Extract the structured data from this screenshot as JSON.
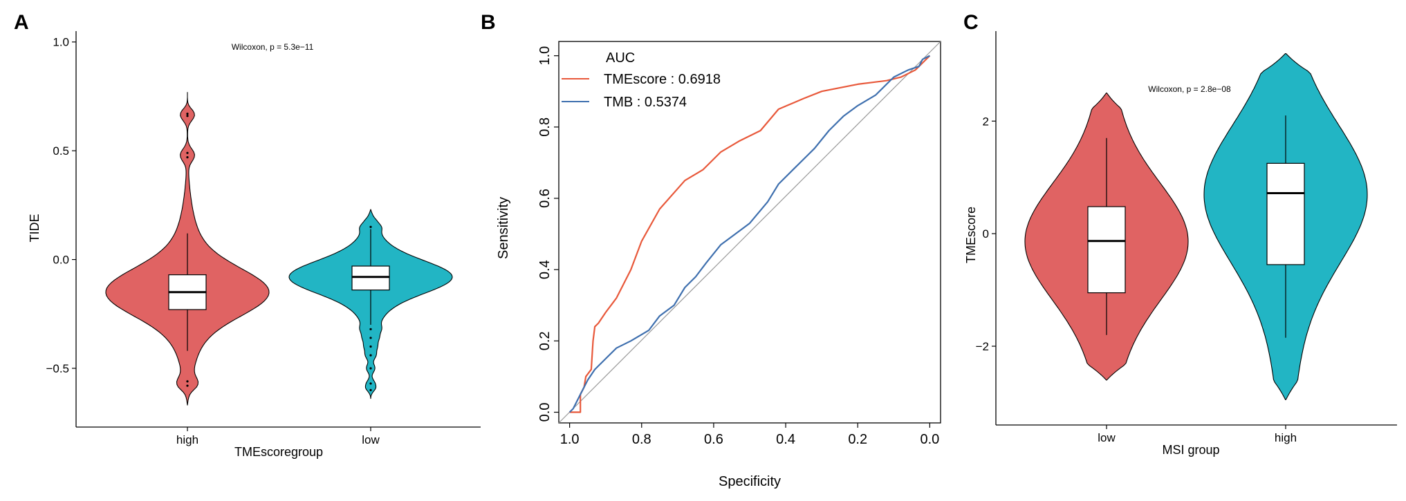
{
  "colors": {
    "red": "#e06363",
    "teal": "#22b5c4",
    "roc_red": "#e8583a",
    "roc_blue": "#3e6fae",
    "diag": "#999999"
  },
  "chart_data": [
    {
      "id": "A",
      "panel_label": "A",
      "type": "violin",
      "title": "Wilcoxon, p = 5.3e−11",
      "xlabel": "TMEscoregroup",
      "ylabel": "TIDE",
      "ylim": [
        -0.77,
        1.05
      ],
      "yticks": [
        -0.5,
        0.0,
        0.5,
        1.0
      ],
      "ytick_labels": [
        "−0.5",
        "0.0",
        "0.5",
        "1.0"
      ],
      "categories": [
        "high",
        "low"
      ],
      "groups": [
        {
          "name": "high",
          "color": "#e06363",
          "min": -0.67,
          "max": 0.77,
          "q1": -0.23,
          "median": -0.15,
          "q3": -0.07,
          "whisker_low": -0.42,
          "whisker_high": 0.12,
          "outliers": [
            0.66,
            0.67,
            0.47,
            0.49,
            -0.56,
            -0.58
          ]
        },
        {
          "name": "low",
          "color": "#22b5c4",
          "min": -0.64,
          "max": 0.23,
          "q1": -0.14,
          "median": -0.08,
          "q3": -0.03,
          "whisker_low": -0.3,
          "whisker_high": 0.14,
          "outliers": [
            -0.32,
            -0.36,
            -0.4,
            -0.44,
            -0.5,
            -0.57,
            -0.6,
            0.15
          ]
        }
      ]
    },
    {
      "id": "B",
      "panel_label": "B",
      "type": "line",
      "title": "",
      "xlabel": "Specificity",
      "ylabel": "Sensitivity",
      "xlim": [
        1.03,
        -0.03
      ],
      "ylim": [
        -0.03,
        1.04
      ],
      "xticks": [
        1.0,
        0.8,
        0.6,
        0.4,
        0.2,
        0.0
      ],
      "xtick_labels": [
        "1.0",
        "0.8",
        "0.6",
        "0.4",
        "0.2",
        "0.0"
      ],
      "yticks": [
        0.0,
        0.2,
        0.4,
        0.6,
        0.8,
        1.0
      ],
      "ytick_labels": [
        "0.0",
        "0.2",
        "0.4",
        "0.6",
        "0.8",
        "1.0"
      ],
      "legend_title": "AUC",
      "series": [
        {
          "name": "TMEscore : 0.6918",
          "color": "#e8583a",
          "x": [
            1.0,
            0.97,
            0.97,
            0.96,
            0.955,
            0.94,
            0.935,
            0.93,
            0.92,
            0.9,
            0.87,
            0.83,
            0.8,
            0.75,
            0.68,
            0.63,
            0.58,
            0.53,
            0.47,
            0.42,
            0.35,
            0.3,
            0.2,
            0.12,
            0.08,
            0.04,
            0.02,
            0.0
          ],
          "y": [
            0.0,
            0.0,
            0.05,
            0.07,
            0.1,
            0.12,
            0.2,
            0.24,
            0.25,
            0.28,
            0.32,
            0.4,
            0.48,
            0.57,
            0.65,
            0.68,
            0.73,
            0.76,
            0.79,
            0.85,
            0.88,
            0.9,
            0.92,
            0.93,
            0.94,
            0.96,
            0.98,
            1.0
          ]
        },
        {
          "name": "TMB : 0.5374",
          "color": "#3e6fae",
          "x": [
            1.0,
            0.99,
            0.98,
            0.97,
            0.96,
            0.95,
            0.93,
            0.9,
            0.87,
            0.83,
            0.78,
            0.75,
            0.71,
            0.68,
            0.65,
            0.62,
            0.58,
            0.54,
            0.5,
            0.45,
            0.42,
            0.38,
            0.34,
            0.32,
            0.28,
            0.24,
            0.2,
            0.15,
            0.12,
            0.1,
            0.06,
            0.03,
            0.02,
            0.0
          ],
          "y": [
            0.0,
            0.01,
            0.03,
            0.05,
            0.07,
            0.09,
            0.12,
            0.15,
            0.18,
            0.2,
            0.23,
            0.27,
            0.3,
            0.35,
            0.38,
            0.42,
            0.47,
            0.5,
            0.53,
            0.59,
            0.64,
            0.68,
            0.72,
            0.74,
            0.79,
            0.83,
            0.86,
            0.89,
            0.92,
            0.94,
            0.96,
            0.97,
            0.99,
            1.0
          ]
        }
      ]
    },
    {
      "id": "C",
      "panel_label": "C",
      "type": "violin",
      "title": "Wilcoxon, p = 2.8e−08",
      "xlabel": "MSI group",
      "ylabel": "TMEscore",
      "ylim": [
        -3.4,
        3.6
      ],
      "yticks": [
        -2,
        0,
        2
      ],
      "ytick_labels": [
        "−2",
        "0",
        "2"
      ],
      "categories": [
        "low",
        "high"
      ],
      "groups": [
        {
          "name": "low",
          "color": "#e06363",
          "min": -2.6,
          "max": 2.5,
          "q1": -1.05,
          "median": -0.13,
          "q3": 0.48,
          "whisker_low": -1.8,
          "whisker_high": 1.7,
          "outliers": []
        },
        {
          "name": "high",
          "color": "#22b5c4",
          "min": -2.95,
          "max": 3.2,
          "q1": -0.55,
          "median": 0.72,
          "q3": 1.25,
          "whisker_low": -1.85,
          "whisker_high": 2.1,
          "outliers": []
        }
      ]
    }
  ]
}
